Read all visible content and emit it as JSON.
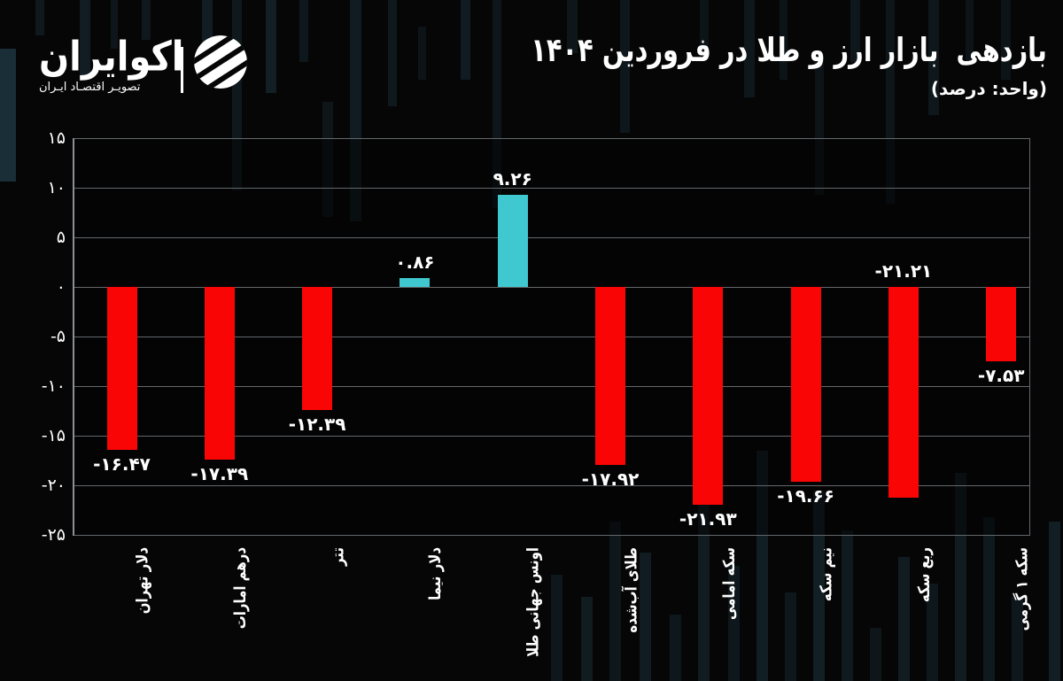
{
  "brand": {
    "name": "اکوایران",
    "tagline": "تصویـر اقتصـاد ایـران",
    "mark": "ecoiran-striped-globe"
  },
  "chart_data": {
    "type": "bar",
    "title": "بازدهی  بازار ارز و طلا در فروردین ۱۴۰۴",
    "unit": "(واحد: درصد)",
    "ylim": [
      -25,
      15
    ],
    "ytick_step": 5,
    "yticks": [
      15,
      10,
      5,
      0,
      -5,
      -10,
      -15,
      -20,
      -25
    ],
    "ytick_labels": [
      "۱۵",
      "۱۰",
      "۵",
      "۰",
      "-۵",
      "-۱۰",
      "-۱۵",
      "-۲۰",
      "-۲۵"
    ],
    "categories": [
      "دلار تهران",
      "درهم امارات",
      "تتر",
      "دلار نیما",
      "اونس جهانی طلا",
      "طلای آب‌شده",
      "سکه امامی",
      "نیم سکه",
      "ربع سکه",
      "سکه ۱ گرمی"
    ],
    "values": [
      -16.47,
      -17.39,
      -12.39,
      0.86,
      9.26,
      -17.92,
      -21.93,
      -19.66,
      -21.21,
      -7.53
    ],
    "value_labels": [
      "-۱۶.۴۷",
      "-۱۷.۳۹",
      "-۱۲.۳۹",
      "۰.۸۶",
      "۹.۲۶",
      "-۱۷.۹۲",
      "-۲۱.۹۳",
      "-۱۹.۶۶",
      "-۲۱.۲۱",
      "-۷.۵۳"
    ],
    "value_label_above_axis": [
      false,
      false,
      false,
      false,
      false,
      false,
      false,
      false,
      true,
      false
    ],
    "grid": true,
    "legend": false,
    "colors": {
      "positive_bar": "#3fc8cf",
      "negative_bar": "#fa0505",
      "background": "#060606",
      "gridline": "#63686c",
      "text": "#ffffff"
    }
  }
}
